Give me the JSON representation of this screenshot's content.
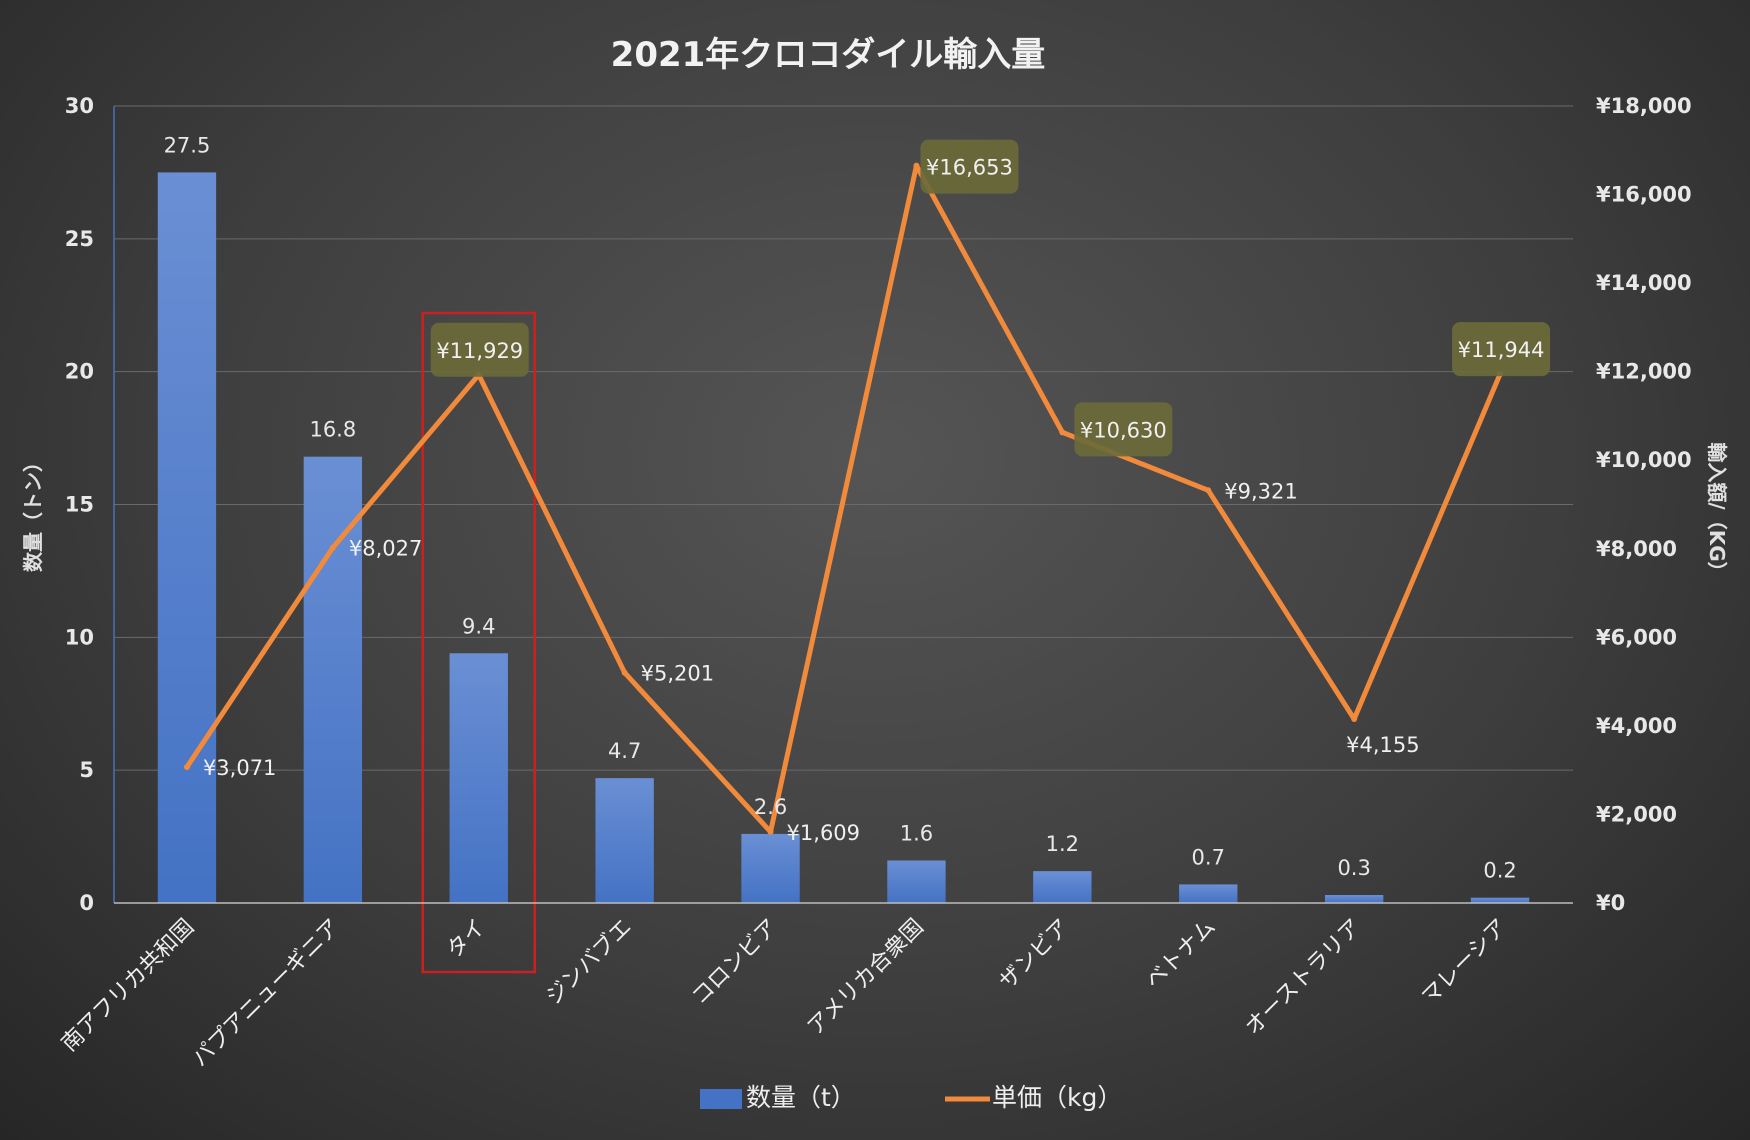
{
  "chart_data": {
    "type": "bar+line",
    "title": "2021年クロコダイル輸入量",
    "categories": [
      "南アフリカ共和国",
      "パプアニューギニア",
      "タイ",
      "ジンバブエ",
      "コロンビア",
      "アメリカ合衆国",
      "ザンビア",
      "ベトナム",
      "オーストラリア",
      "マレーシア"
    ],
    "series": [
      {
        "name": "数量（t）",
        "type": "bar",
        "axis": "left",
        "color": "#4472c4",
        "values": [
          27.5,
          16.8,
          9.4,
          4.7,
          2.6,
          1.6,
          1.2,
          0.7,
          0.3,
          0.2
        ],
        "labels": [
          "27.5",
          "16.8",
          "9.4",
          "4.7",
          "2.6",
          "1.6",
          "1.2",
          "0.7",
          "0.3",
          "0.2"
        ]
      },
      {
        "name": "単価（kg）",
        "type": "line",
        "axis": "right",
        "color": "#f28a3c",
        "values": [
          3071,
          8027,
          11929,
          5201,
          1609,
          16653,
          10630,
          9321,
          4155,
          11944
        ],
        "labels": [
          "¥3,071",
          "¥8,027",
          "¥11,929",
          "¥5,201",
          "¥1,609",
          "¥16,653",
          "¥10,630",
          "¥9,321",
          "¥4,155",
          "¥11,944"
        ],
        "highlighted_labels": [
          "¥11,929",
          "¥16,653",
          "¥10,630",
          "¥11,944"
        ]
      }
    ],
    "y_left": {
      "label": "数量（トン）",
      "range": [
        0,
        30
      ],
      "ticks": [
        "0",
        "5",
        "10",
        "15",
        "20",
        "25",
        "30"
      ]
    },
    "y_right": {
      "label": "輸入額/（KG）",
      "range": [
        0,
        18000
      ],
      "ticks": [
        "¥0",
        "¥2,000",
        "¥4,000",
        "¥6,000",
        "¥8,000",
        "¥10,000",
        "¥12,000",
        "¥14,000",
        "¥16,000",
        "¥18,000"
      ]
    },
    "grid": true,
    "legend": "bottom",
    "highlighted_category": "タイ",
    "highlight_color": "#cc1f1f",
    "label_badge_color": "#6b6a3a"
  }
}
